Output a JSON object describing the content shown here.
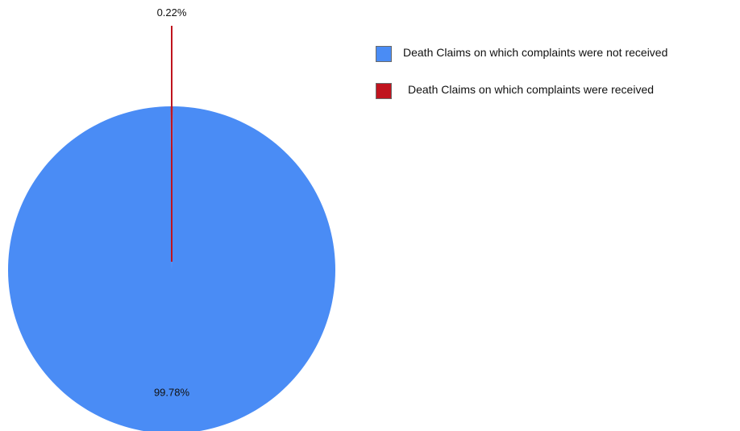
{
  "chart_data": {
    "type": "pie",
    "series": [
      {
        "label": "Death Claims  on which complaints were not received",
        "value": 99.78,
        "display": "99.78%",
        "color": "#4a8cf5"
      },
      {
        "label": "Death Claims  on which complaints were received",
        "value": 0.22,
        "display": "0.22%",
        "color": "#c0141e"
      }
    ],
    "legend_position": "right"
  }
}
